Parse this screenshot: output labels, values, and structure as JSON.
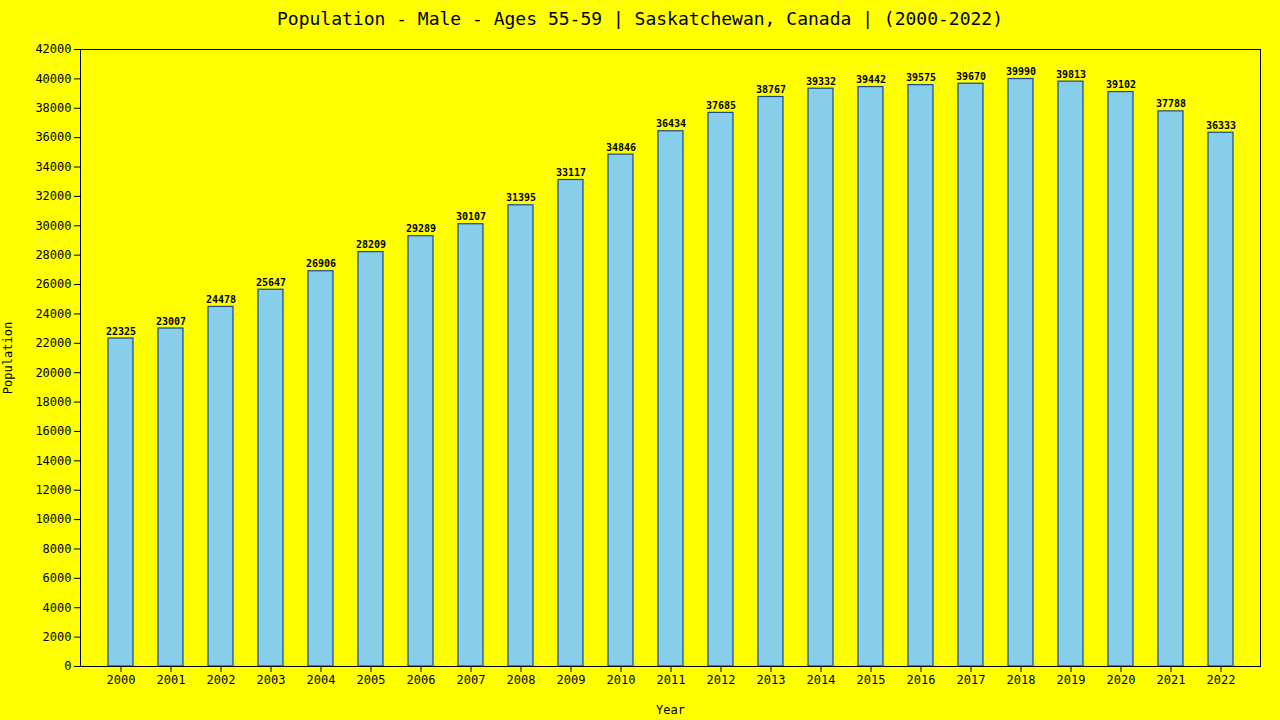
{
  "chart_data": {
    "type": "bar",
    "title": "Population - Male - Ages 55-59 | Saskatchewan, Canada |  (2000-2022)",
    "x_label": "Year",
    "y_label": "Population",
    "categories": [
      "2000",
      "2001",
      "2002",
      "2003",
      "2004",
      "2005",
      "2006",
      "2007",
      "2008",
      "2009",
      "2010",
      "2011",
      "2012",
      "2013",
      "2014",
      "2015",
      "2016",
      "2017",
      "2018",
      "2019",
      "2020",
      "2021",
      "2022"
    ],
    "values": [
      22325,
      23007,
      24478,
      25647,
      26906,
      28209,
      29289,
      30107,
      31395,
      33117,
      34846,
      36434,
      37685,
      38767,
      39332,
      39442,
      39575,
      39670,
      39990,
      39813,
      39102,
      37788,
      36333
    ],
    "color": "#87CEEB",
    "ylim": [
      0,
      42000
    ],
    "yticks": [
      0,
      2000,
      4000,
      6000,
      8000,
      10000,
      12000,
      14000,
      16000,
      18000,
      20000,
      22000,
      24000,
      26000,
      28000,
      30000,
      32000,
      34000,
      36000,
      38000,
      40000,
      42000
    ],
    "grid": false,
    "data_labels": true
  }
}
